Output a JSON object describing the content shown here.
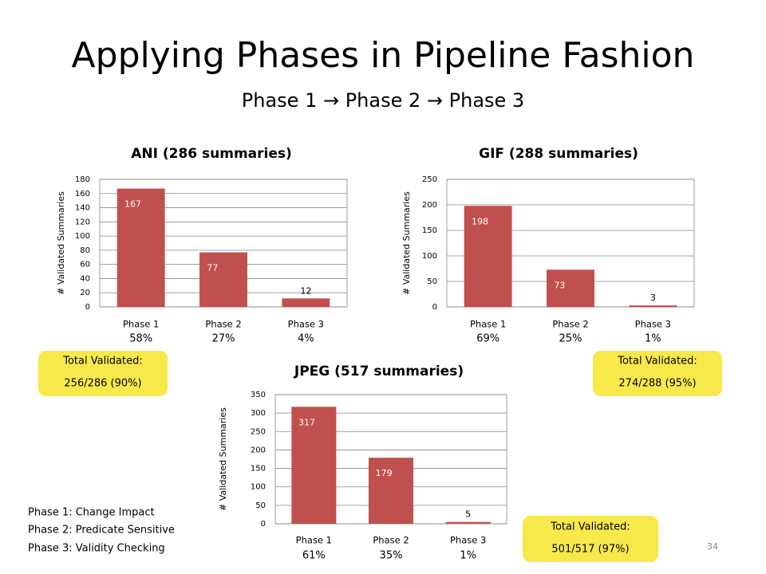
{
  "title": "Applying Phases in Pipeline Fashion",
  "subtitle": "Phase 1 → Phase 2 → Phase 3",
  "chart_data": [
    {
      "type": "bar",
      "title": "ANI (286 summaries)",
      "y_label": "# Validated Summaries",
      "categories": [
        "Phase 1",
        "Phase 2",
        "Phase 3"
      ],
      "values": [
        167,
        77,
        12
      ],
      "color": "#c0504d",
      "ylim": [
        0,
        180
      ],
      "yticks": [
        0,
        20,
        40,
        60,
        80,
        100,
        120,
        140,
        160,
        180
      ],
      "grid": true,
      "shares": [
        "58%",
        "27%",
        "4%"
      ]
    },
    {
      "type": "bar",
      "title": "GIF (288 summaries)",
      "y_label": "# Validated Summaries",
      "categories": [
        "Phase 1",
        "Phase 2",
        "Phase 3"
      ],
      "values": [
        198,
        73,
        3
      ],
      "color": "#c0504d",
      "ylim": [
        0,
        250
      ],
      "yticks": [
        0,
        50,
        100,
        150,
        200,
        250
      ],
      "grid": true,
      "shares": [
        "69%",
        "25%",
        "1%"
      ]
    },
    {
      "type": "bar",
      "title": "JPEG (517 summaries)",
      "y_label": "# Validated Summaries",
      "categories": [
        "Phase 1",
        "Phase 2",
        "Phase 3"
      ],
      "values": [
        317,
        179,
        5
      ],
      "color": "#c0504d",
      "ylim": [
        0,
        350
      ],
      "yticks": [
        0,
        50,
        100,
        150,
        200,
        250,
        300,
        350
      ],
      "grid": true,
      "shares": [
        "61%",
        "35%",
        "1%"
      ]
    }
  ],
  "totals": [
    {
      "label": "Total Validated:",
      "value": "256/286 (90%)"
    },
    {
      "label": "Total Validated:",
      "value": "274/288 (95%)"
    },
    {
      "label": "Total Validated:",
      "value": "501/517 (97%)"
    }
  ],
  "notes": [
    "Phase 1: Change Impact",
    "Phase 2: Predicate Sensitive",
    "Phase 3: Validity Checking"
  ],
  "page_number": "34"
}
